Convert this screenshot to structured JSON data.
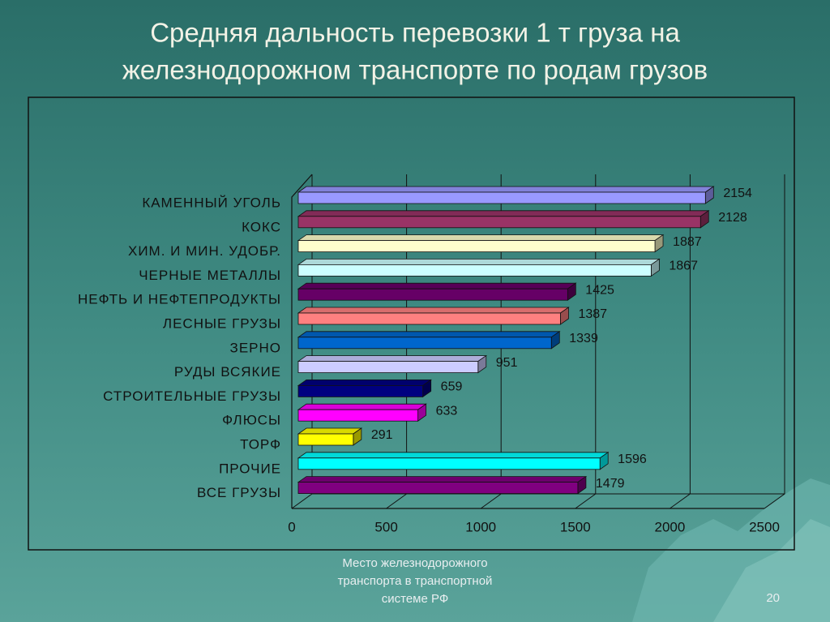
{
  "chart_data": {
    "type": "bar",
    "orientation": "horizontal",
    "three_d": true,
    "title": "Средняя дальность перевозки 1 т груза на железнодорожном транспорте по родам грузов",
    "title_lines": [
      "Средняя дальность перевозки 1 т груза на",
      "железнодорожном транспорте по родам грузов"
    ],
    "categories": [
      "КАМЕННЫЙ УГОЛЬ",
      "КОКС",
      "ХИМ. И МИН. УДОБР.",
      "ЧЕРНЫЕ МЕТАЛЛЫ",
      "НЕФТЬ И НЕФТЕПРОДУКТЫ",
      "ЛЕСНЫЕ ГРУЗЫ",
      "ЗЕРНО",
      "РУДЫ ВСЯКИЕ",
      "СТРОИТЕЛЬНЫЕ ГРУЗЫ",
      "ФЛЮСЫ",
      "ТОРФ",
      "ПРОЧИЕ",
      "ВСЕ ГРУЗЫ"
    ],
    "values": [
      2154,
      2128,
      1887,
      1867,
      1425,
      1387,
      1339,
      951,
      659,
      633,
      291,
      1596,
      1479
    ],
    "colors": [
      "#9999ff",
      "#993366",
      "#ffffcc",
      "#ccffff",
      "#660066",
      "#ff8080",
      "#0066cc",
      "#ccccff",
      "#000080",
      "#ff00ff",
      "#ffff00",
      "#00ffff",
      "#800080"
    ],
    "xlim": [
      0,
      2500
    ],
    "xticks": [
      0,
      500,
      1000,
      1500,
      2000,
      2500
    ],
    "grid": true
  },
  "footer": {
    "caption_lines": [
      "Место железнодорожного",
      "транспорта в транспортной",
      "системе РФ"
    ],
    "page_number": "20"
  }
}
